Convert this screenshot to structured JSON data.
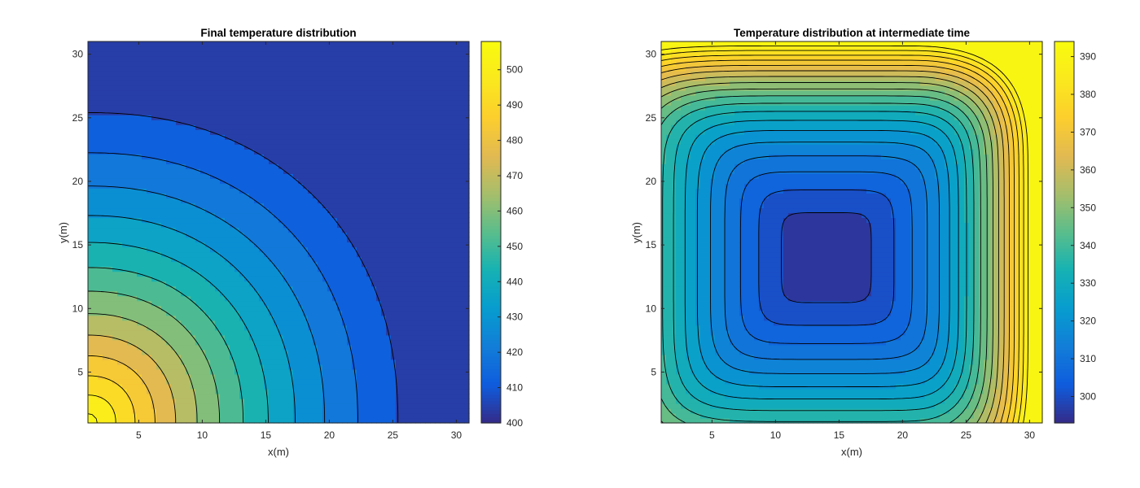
{
  "chart_data": [
    {
      "type": "contourf",
      "title": "Final temperature distribution",
      "xlabel": "x(m)",
      "ylabel": "y(m)",
      "xlim": [
        1,
        31
      ],
      "ylim": [
        1,
        31
      ],
      "xticks": [
        5,
        10,
        15,
        20,
        25,
        30
      ],
      "yticks": [
        5,
        10,
        15,
        20,
        25,
        30
      ],
      "colorbar": {
        "min": 400,
        "max": 508,
        "ticks": [
          400,
          410,
          420,
          430,
          440,
          450,
          460,
          470,
          480,
          490,
          500
        ]
      },
      "colormap": "parula",
      "contour_levels": [
        400,
        408,
        416,
        424,
        432,
        440,
        448,
        456,
        464,
        472,
        480,
        488,
        496,
        504
      ],
      "field": "steady state: hot corner at (x=1,y=1) about 508, cold along top and right edges about 400"
    },
    {
      "type": "contourf",
      "title": "Temperature distribution at intermediate time",
      "xlabel": "x(m)",
      "ylabel": "y(m)",
      "xlim": [
        1,
        31
      ],
      "ylim": [
        1,
        31
      ],
      "xticks": [
        5,
        10,
        15,
        20,
        25,
        30
      ],
      "yticks": [
        5,
        10,
        15,
        20,
        25,
        30
      ],
      "colorbar": {
        "min": 293,
        "max": 394,
        "ticks": [
          300,
          310,
          320,
          330,
          340,
          350,
          360,
          370,
          380,
          390
        ]
      },
      "colormap": "parula",
      "contour_levels": [
        298,
        303,
        308,
        313,
        318,
        323,
        328,
        333,
        338,
        343,
        348,
        353,
        358,
        363,
        368,
        373,
        378,
        383,
        388
      ],
      "field": "transient: cold square core (~295) centered near x=14,y=14, hot right edge (~394) and top edge (~390)"
    }
  ]
}
